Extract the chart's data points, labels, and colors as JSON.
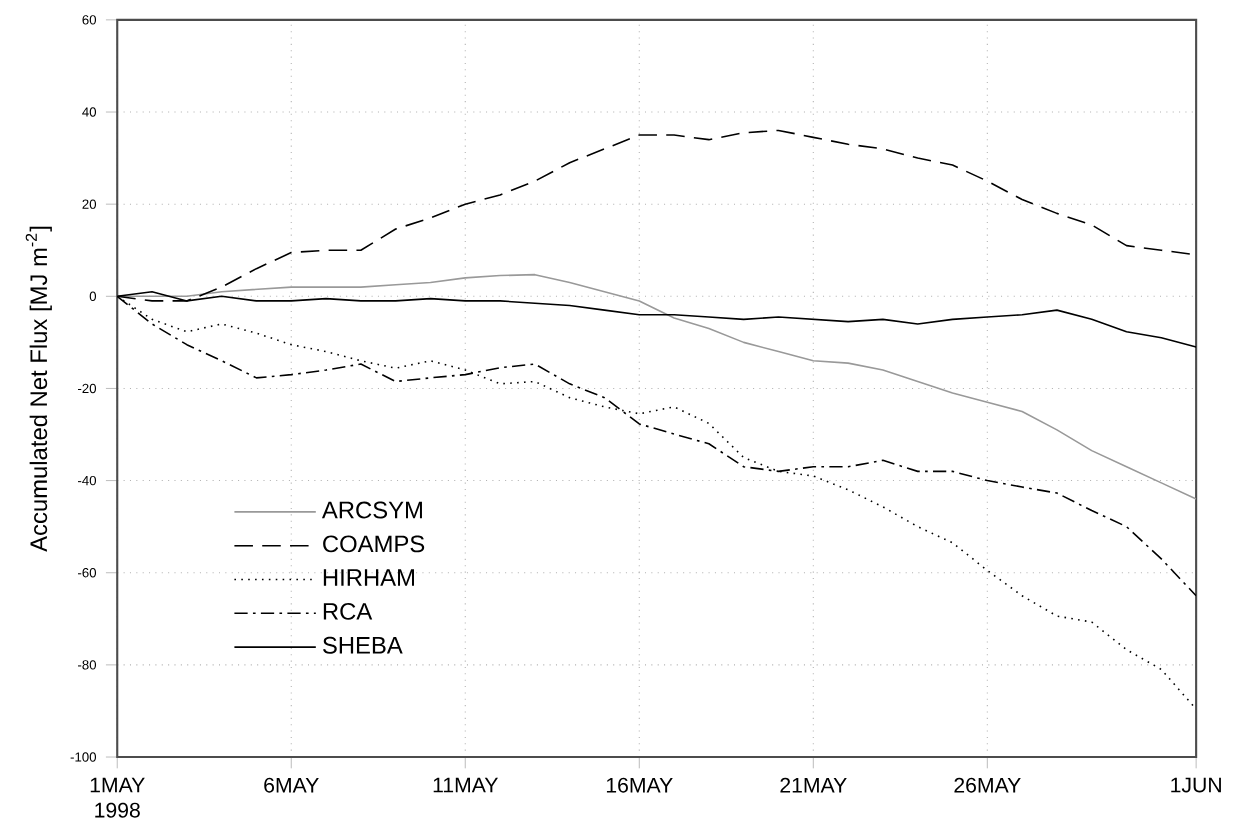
{
  "chart_data": {
    "type": "line",
    "ylabel": "Accumulated Net Flux [MJ m$^{-2}$]",
    "x": [
      "1998-05-01",
      "1998-05-02",
      "1998-05-03",
      "1998-05-04",
      "1998-05-05",
      "1998-05-06",
      "1998-05-07",
      "1998-05-08",
      "1998-05-09",
      "1998-05-10",
      "1998-05-11",
      "1998-05-12",
      "1998-05-13",
      "1998-05-14",
      "1998-05-15",
      "1998-05-16",
      "1998-05-17",
      "1998-05-18",
      "1998-05-19",
      "1998-05-20",
      "1998-05-21",
      "1998-05-22",
      "1998-05-23",
      "1998-05-24",
      "1998-05-25",
      "1998-05-26",
      "1998-05-27",
      "1998-05-28",
      "1998-05-29",
      "1998-05-30",
      "1998-05-31",
      "1998-06-01"
    ],
    "series": [
      {
        "name": "ARCSYM",
        "color": "#999999",
        "line_style": "solid",
        "values": [
          0,
          0,
          0,
          1,
          1.5,
          2,
          2,
          2,
          2.5,
          3,
          4,
          4.5,
          4.7,
          3,
          1,
          -1,
          -4.7,
          -7,
          -10,
          -12,
          -14,
          -14.5,
          -16,
          -18.5,
          -21,
          -23,
          -25,
          -29,
          -33.5,
          -37,
          -40.5,
          -44
        ]
      },
      {
        "name": "COAMPS",
        "color": "#000000",
        "line_style": "dashed",
        "values": [
          0,
          -1,
          -1,
          2,
          6,
          9.5,
          10,
          10,
          14.6,
          17,
          20,
          22,
          25,
          29,
          32,
          35,
          35,
          34,
          35.5,
          36,
          34.5,
          33,
          32,
          30,
          28.5,
          25,
          21,
          18,
          15.5,
          11,
          10,
          9
        ]
      },
      {
        "name": "HIRHAM",
        "color": "#000000",
        "line_style": "dotted",
        "values": [
          0,
          -5,
          -7.7,
          -6,
          -8,
          -10.5,
          -12,
          -14,
          -15.6,
          -14,
          -16,
          -19,
          -18.5,
          -22,
          -24,
          -25.5,
          -24,
          -27.6,
          -35,
          -38,
          -39,
          -42,
          -45.7,
          -50,
          -53.5,
          -59.5,
          -65,
          -69.4,
          -70.7,
          -76.7,
          -81,
          -89.6
        ]
      },
      {
        "name": "RCA",
        "color": "#000000",
        "line_style": "dashdot",
        "values": [
          0,
          -6,
          -10.5,
          -14,
          -17.7,
          -17,
          -16,
          -14.7,
          -18.5,
          -17.7,
          -17,
          -15.5,
          -14.7,
          -19,
          -22,
          -27.7,
          -29.9,
          -32,
          -37,
          -38,
          -37,
          -37,
          -35.6,
          -38,
          -38,
          -40,
          -41.4,
          -42.7,
          -46.5,
          -50,
          -57,
          -65
        ]
      },
      {
        "name": "SHEBA",
        "color": "#000000",
        "line_style": "solid",
        "values": [
          0,
          1,
          -1,
          0,
          -1,
          -1,
          -0.5,
          -1,
          -1,
          -0.5,
          -1,
          -1,
          -1.5,
          -2,
          -3,
          -4,
          -4,
          -4.5,
          -5,
          -4.5,
          -5,
          -5.5,
          -5,
          -6,
          -5,
          -4.5,
          -4,
          -3,
          -5,
          -7.7,
          -9,
          -11
        ]
      }
    ],
    "xlim": [
      "1998-05-01",
      "1998-06-01"
    ],
    "xticks": [
      {
        "value": "1998-05-01",
        "label": "1MAY 1998"
      },
      {
        "value": "1998-05-06",
        "label": "6MAY"
      },
      {
        "value": "1998-05-11",
        "label": "11MAY"
      },
      {
        "value": "1998-05-16",
        "label": "16MAY"
      },
      {
        "value": "1998-05-21",
        "label": "21MAY"
      },
      {
        "value": "1998-05-26",
        "label": "26MAY"
      },
      {
        "value": "1998-06-01",
        "label": "1JUN"
      }
    ],
    "ylim": [
      -100,
      60
    ],
    "yticks": [
      -100,
      -80,
      -60,
      -40,
      -20,
      0,
      20,
      40,
      60
    ],
    "grid": true,
    "legend": "bottom left"
  }
}
